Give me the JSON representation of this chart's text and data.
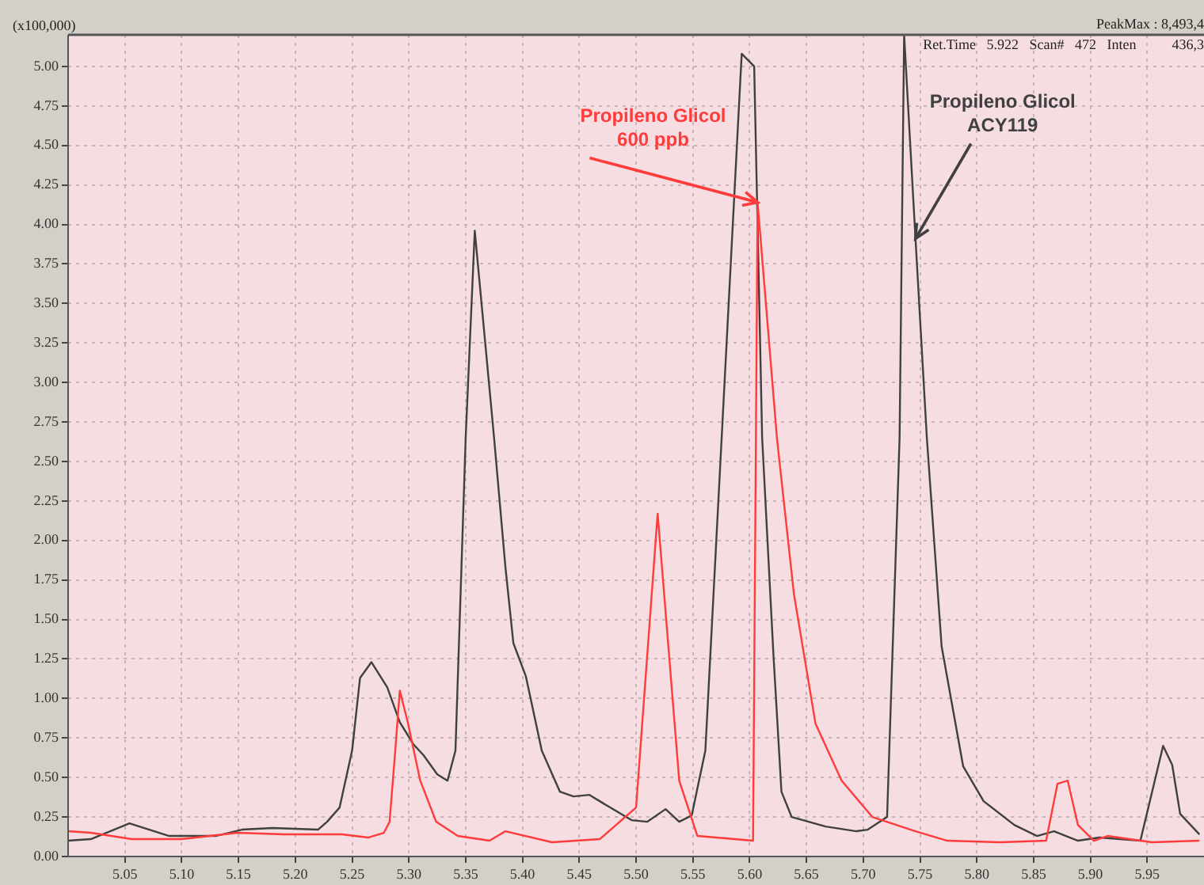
{
  "chart_data": {
    "type": "line",
    "ylabel": "(x100,000)",
    "annotations": [
      "PeakMax : 8,493,4",
      "Ret.Time   5.922   Scan#   472   Inten          436,3",
      {
        "text": "Propileno Glicol\n600 ppb",
        "x": 5.607,
        "y": 4.14
      },
      {
        "text": "Propileno Glicol\nACY119",
        "x": 5.746,
        "y": 3.91
      }
    ],
    "xlim": [
      5.0,
      6.0
    ],
    "ylim": [
      0,
      5.2
    ],
    "xticks": [
      {
        "value": 5.05,
        "label": "5.05"
      },
      {
        "value": 5.1,
        "label": "5.10"
      },
      {
        "value": 5.15,
        "label": "5.15"
      },
      {
        "value": 5.2,
        "label": "5.20"
      },
      {
        "value": 5.25,
        "label": "5.25"
      },
      {
        "value": 5.3,
        "label": "5.30"
      },
      {
        "value": 5.35,
        "label": "5.35"
      },
      {
        "value": 5.4,
        "label": "5.40"
      },
      {
        "value": 5.45,
        "label": "5.45"
      },
      {
        "value": 5.5,
        "label": "5.50"
      },
      {
        "value": 5.55,
        "label": "5.55"
      },
      {
        "value": 5.6,
        "label": "5.60"
      },
      {
        "value": 5.65,
        "label": "5.65"
      },
      {
        "value": 5.7,
        "label": "5.70"
      },
      {
        "value": 5.75,
        "label": "5.75"
      },
      {
        "value": 5.8,
        "label": "5.80"
      },
      {
        "value": 5.85,
        "label": "5.85"
      },
      {
        "value": 5.9,
        "label": "5.90"
      },
      {
        "value": 5.95,
        "label": "5.95"
      }
    ],
    "yticks": [
      {
        "value": 0,
        "label": "0.00"
      },
      {
        "value": 0.25,
        "label": "0.25"
      },
      {
        "value": 0.5,
        "label": "0.50"
      },
      {
        "value": 0.75,
        "label": "0.75"
      },
      {
        "value": 1,
        "label": "1.00"
      },
      {
        "value": 1.25,
        "label": "1.25"
      },
      {
        "value": 1.5,
        "label": "1.50"
      },
      {
        "value": 1.75,
        "label": "1.75"
      },
      {
        "value": 2,
        "label": "2.00"
      },
      {
        "value": 2.25,
        "label": "2.25"
      },
      {
        "value": 2.5,
        "label": "2.50"
      },
      {
        "value": 2.75,
        "label": "2.75"
      },
      {
        "value": 3,
        "label": "3.00"
      },
      {
        "value": 3.25,
        "label": "3.25"
      },
      {
        "value": 3.5,
        "label": "3.50"
      },
      {
        "value": 3.75,
        "label": "3.75"
      },
      {
        "value": 4,
        "label": "4.00"
      },
      {
        "value": 4.25,
        "label": "4.25"
      },
      {
        "value": 4.5,
        "label": "4.50"
      },
      {
        "value": 4.75,
        "label": "4.75"
      },
      {
        "value": 5,
        "label": "5.00"
      }
    ],
    "grid": true,
    "legend": false,
    "marker": "none",
    "line_style": "solid",
    "series": [
      {
        "color": "#ff3b3b",
        "x": [
          5.0,
          5.02,
          5.056,
          5.1,
          5.149,
          5.19,
          5.241,
          5.264,
          5.278,
          5.283,
          5.288,
          5.292,
          5.299,
          5.31,
          5.324,
          5.343,
          5.371,
          5.385,
          5.426,
          5.468,
          5.5,
          5.519,
          5.538,
          5.554,
          5.603,
          5.607,
          5.624,
          5.639,
          5.658,
          5.681,
          5.708,
          5.746,
          5.774,
          5.82,
          5.861,
          5.871,
          5.88,
          5.889,
          5.903,
          5.915,
          5.954,
          5.996
        ],
        "values": [
          0.16,
          0.15,
          0.11,
          0.11,
          0.15,
          0.14,
          0.14,
          0.12,
          0.15,
          0.22,
          0.67,
          1.05,
          0.85,
          0.48,
          0.22,
          0.13,
          0.1,
          0.16,
          0.09,
          0.11,
          0.31,
          2.17,
          0.48,
          0.13,
          0.1,
          4.14,
          2.65,
          1.66,
          0.84,
          0.48,
          0.25,
          0.16,
          0.1,
          0.09,
          0.1,
          0.46,
          0.48,
          0.2,
          0.1,
          0.13,
          0.09,
          0.1
        ]
      },
      {
        "color": "#404040",
        "x": [
          5.0,
          5.02,
          5.054,
          5.089,
          5.13,
          5.153,
          5.18,
          5.22,
          5.228,
          5.239,
          5.25,
          5.257,
          5.267,
          5.281,
          5.292,
          5.304,
          5.313,
          5.325,
          5.334,
          5.341,
          5.35,
          5.358,
          5.375,
          5.385,
          5.392,
          5.403,
          5.417,
          5.433,
          5.445,
          5.459,
          5.468,
          5.496,
          5.51,
          5.526,
          5.538,
          5.549,
          5.561,
          5.593,
          5.604,
          5.611,
          5.621,
          5.628,
          5.637,
          5.667,
          5.694,
          5.704,
          5.721,
          5.732,
          5.736,
          5.746,
          5.756,
          5.769,
          5.788,
          5.806,
          5.833,
          5.853,
          5.868,
          5.889,
          5.908,
          5.944,
          5.964,
          5.972,
          5.979,
          5.996
        ],
        "values": [
          0.1,
          0.11,
          0.21,
          0.13,
          0.13,
          0.17,
          0.18,
          0.17,
          0.22,
          0.31,
          0.67,
          1.13,
          1.23,
          1.07,
          0.85,
          0.71,
          0.64,
          0.52,
          0.48,
          0.67,
          2.65,
          3.96,
          2.65,
          1.83,
          1.35,
          1.14,
          0.67,
          0.41,
          0.38,
          0.39,
          0.35,
          0.23,
          0.22,
          0.3,
          0.22,
          0.26,
          0.67,
          5.08,
          5.0,
          2.65,
          1.27,
          0.41,
          0.25,
          0.19,
          0.16,
          0.17,
          0.25,
          2.65,
          5.2,
          3.91,
          2.65,
          1.33,
          0.57,
          0.35,
          0.2,
          0.13,
          0.16,
          0.1,
          0.12,
          0.1,
          0.7,
          0.58,
          0.27,
          0.14
        ]
      }
    ]
  }
}
